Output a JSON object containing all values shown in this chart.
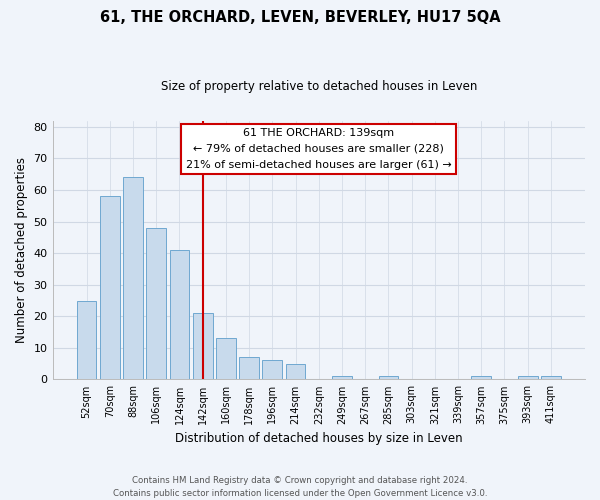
{
  "title": "61, THE ORCHARD, LEVEN, BEVERLEY, HU17 5QA",
  "subtitle": "Size of property relative to detached houses in Leven",
  "xlabel": "Distribution of detached houses by size in Leven",
  "ylabel": "Number of detached properties",
  "bar_labels": [
    "52sqm",
    "70sqm",
    "88sqm",
    "106sqm",
    "124sqm",
    "142sqm",
    "160sqm",
    "178sqm",
    "196sqm",
    "214sqm",
    "232sqm",
    "249sqm",
    "267sqm",
    "285sqm",
    "303sqm",
    "321sqm",
    "339sqm",
    "357sqm",
    "375sqm",
    "393sqm",
    "411sqm"
  ],
  "bar_values": [
    25,
    58,
    64,
    48,
    41,
    21,
    13,
    7,
    6,
    5,
    0,
    1,
    0,
    1,
    0,
    0,
    0,
    1,
    0,
    1,
    1
  ],
  "bar_color": "#c8daec",
  "bar_edgecolor": "#6fa8d0",
  "vline_x": 5,
  "vline_color": "#cc0000",
  "ylim": [
    0,
    82
  ],
  "yticks": [
    0,
    10,
    20,
    30,
    40,
    50,
    60,
    70,
    80
  ],
  "annotation_line1": "61 THE ORCHARD: 139sqm",
  "annotation_line2": "← 79% of detached houses are smaller (228)",
  "annotation_line3": "21% of semi-detached houses are larger (61) →",
  "footer_line1": "Contains HM Land Registry data © Crown copyright and database right 2024.",
  "footer_line2": "Contains public sector information licensed under the Open Government Licence v3.0.",
  "grid_color": "#d0d8e4",
  "bg_color": "#f0f4fa"
}
